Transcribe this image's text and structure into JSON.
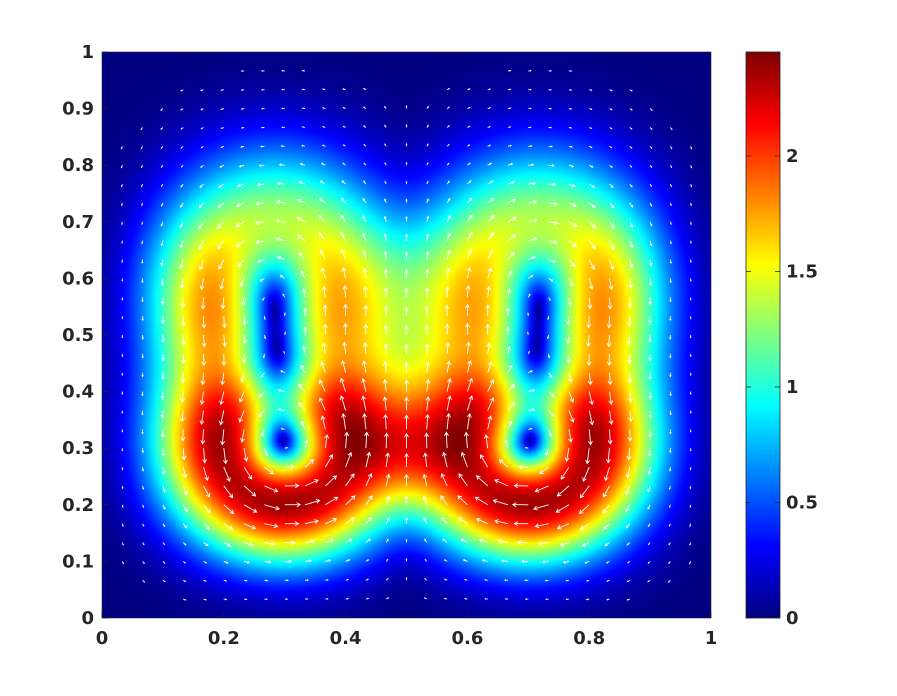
{
  "chart_data": {
    "type": "heatmap",
    "title": "",
    "xlabel": "",
    "ylabel": "",
    "xlim": [
      0,
      1
    ],
    "ylim": [
      0,
      1
    ],
    "x_ticks": [
      "0",
      "0.2",
      "0.4",
      "0.6",
      "0.8",
      "1"
    ],
    "y_ticks": [
      "0",
      "0.1",
      "0.2",
      "0.3",
      "0.4",
      "0.5",
      "0.6",
      "0.7",
      "0.8",
      "0.9",
      "1"
    ],
    "colormap": "jet",
    "clim": [
      0,
      2.45
    ],
    "colorbar_ticks": [
      "0",
      "0.5",
      "1",
      "1.5",
      "2"
    ],
    "colorbar_position": "right",
    "overlay": "white quiver arrows showing the velocity field",
    "magnitude_peaks": [
      {
        "x": 0.5,
        "y": 0.33,
        "value": 2.45
      },
      {
        "x": 0.12,
        "y": 0.32,
        "value": 1.95
      },
      {
        "x": 0.88,
        "y": 0.32,
        "value": 1.95
      },
      {
        "x": 0.3,
        "y": 0.1,
        "value": 1.45
      },
      {
        "x": 0.7,
        "y": 0.1,
        "value": 1.45
      }
    ],
    "vortex_centers": [
      {
        "x": 0.28,
        "y": 0.32
      },
      {
        "x": 0.72,
        "y": 0.32
      }
    ]
  },
  "colors": {
    "arrow": "#ffffff",
    "axis_text": "#262626",
    "axis_line": "#262626"
  }
}
